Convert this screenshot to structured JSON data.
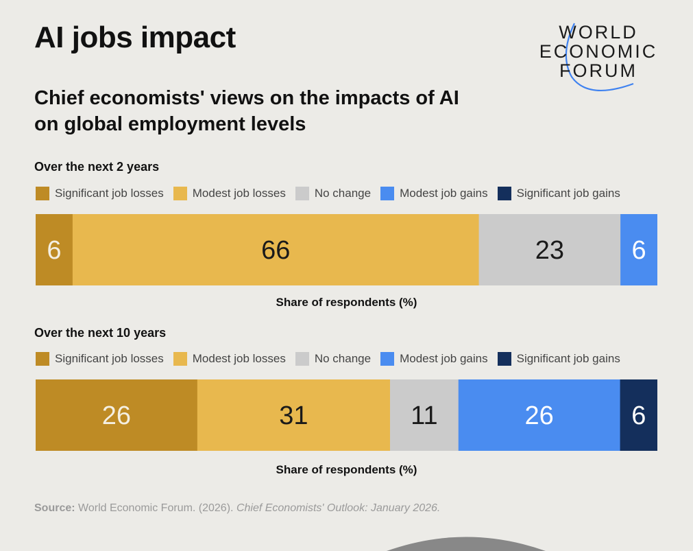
{
  "header": {
    "title": "AI jobs impact",
    "subtitle": "Chief economists' views on the impacts of AI on global employment levels"
  },
  "logo": {
    "lines": [
      "WORLD",
      "ECONOMIC",
      "FORUM"
    ],
    "arc_color": "#3f82f0"
  },
  "colors": {
    "significant_losses": "#be8b25",
    "modest_losses": "#e8b84e",
    "no_change": "#cbcbcb",
    "modest_gains": "#4a8cf0",
    "significant_gains": "#142f5c"
  },
  "legend": [
    {
      "label": "Significant job losses",
      "color_key": "significant_losses"
    },
    {
      "label": "Modest job losses",
      "color_key": "modest_losses"
    },
    {
      "label": "No change",
      "color_key": "no_change"
    },
    {
      "label": "Modest job gains",
      "color_key": "modest_gains"
    },
    {
      "label": "Significant job gains",
      "color_key": "significant_gains"
    }
  ],
  "chart_data": [
    {
      "type": "bar",
      "orientation": "horizontal-stacked",
      "title": "Over the next 2 years",
      "xlabel": "Share of respondents (%)",
      "categories": [
        "Significant job losses",
        "Modest job losses",
        "No change",
        "Modest job gains",
        "Significant job gains"
      ],
      "values": [
        6,
        66,
        23,
        6,
        0
      ],
      "label_colors": [
        "#f4efe2",
        "#1a1a1a",
        "#1a1a1a",
        "#ffffff",
        "#ffffff"
      ]
    },
    {
      "type": "bar",
      "orientation": "horizontal-stacked",
      "title": "Over the next 10 years",
      "xlabel": "Share of respondents (%)",
      "categories": [
        "Significant job losses",
        "Modest job losses",
        "No change",
        "Modest job gains",
        "Significant job gains"
      ],
      "values": [
        26,
        31,
        11,
        26,
        6
      ],
      "label_colors": [
        "#f4efe2",
        "#1a1a1a",
        "#1a1a1a",
        "#ffffff",
        "#ffffff"
      ]
    }
  ],
  "source": {
    "label": "Source:",
    "text": "World Economic Forum. (2026).",
    "italic": "Chief Economists' Outlook: January 2026."
  }
}
